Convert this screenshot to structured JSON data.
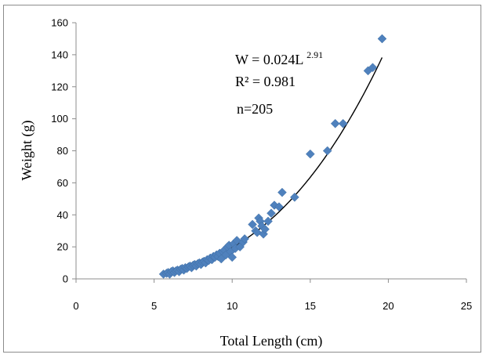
{
  "chart_data": {
    "type": "scatter",
    "title": "",
    "xlabel": "Total Length (cm)",
    "ylabel": "Weight (g)",
    "xlim": [
      0,
      25
    ],
    "ylim": [
      0,
      160
    ],
    "xticks": [
      "0",
      "5",
      "10",
      "15",
      "20",
      "25"
    ],
    "yticks": [
      "0",
      "20",
      "40",
      "60",
      "80",
      "100",
      "120",
      "140",
      "160"
    ],
    "grid": false,
    "legend": "none",
    "marker_color": "#4f81bd",
    "marker_shape": "diamond",
    "trendline": {
      "type": "power",
      "a": 0.024,
      "b": 2.91,
      "color": "#000000"
    },
    "annotations": {
      "equation_prefix": "W = 0.024L",
      "equation_exponent": "2.91",
      "r2": "R² = 0.981",
      "n": "n=205"
    },
    "points": [
      [
        5.6,
        3
      ],
      [
        5.8,
        3.5
      ],
      [
        5.9,
        4
      ],
      [
        6.0,
        3
      ],
      [
        6.1,
        4.5
      ],
      [
        6.2,
        5
      ],
      [
        6.3,
        4
      ],
      [
        6.4,
        5
      ],
      [
        6.5,
        5.5
      ],
      [
        6.6,
        4.5
      ],
      [
        6.7,
        6
      ],
      [
        6.8,
        6.5
      ],
      [
        6.9,
        5.5
      ],
      [
        7.0,
        7
      ],
      [
        7.1,
        6.5
      ],
      [
        7.2,
        7.5
      ],
      [
        7.3,
        8
      ],
      [
        7.4,
        7
      ],
      [
        7.5,
        8.5
      ],
      [
        7.6,
        9
      ],
      [
        7.7,
        8
      ],
      [
        7.8,
        9.5
      ],
      [
        7.9,
        10
      ],
      [
        8.0,
        9
      ],
      [
        8.1,
        10.5
      ],
      [
        8.2,
        11
      ],
      [
        8.3,
        10
      ],
      [
        8.4,
        12
      ],
      [
        8.5,
        11.5
      ],
      [
        8.6,
        13
      ],
      [
        8.7,
        12
      ],
      [
        8.8,
        14
      ],
      [
        8.9,
        13.5
      ],
      [
        9.0,
        15
      ],
      [
        9.1,
        14
      ],
      [
        9.2,
        16
      ],
      [
        9.3,
        12.5
      ],
      [
        9.4,
        17
      ],
      [
        9.5,
        18
      ],
      [
        9.6,
        15
      ],
      [
        9.7,
        20
      ],
      [
        9.8,
        21
      ],
      [
        9.9,
        17
      ],
      [
        10.0,
        13.5
      ],
      [
        10.1,
        22
      ],
      [
        10.2,
        19
      ],
      [
        10.3,
        24
      ],
      [
        10.5,
        20
      ],
      [
        10.7,
        23
      ],
      [
        10.8,
        25
      ],
      [
        11.3,
        34
      ],
      [
        11.5,
        30
      ],
      [
        11.6,
        29
      ],
      [
        11.7,
        38
      ],
      [
        11.8,
        36
      ],
      [
        11.9,
        33
      ],
      [
        12.0,
        28
      ],
      [
        12.1,
        31
      ],
      [
        12.3,
        36
      ],
      [
        12.5,
        41
      ],
      [
        12.7,
        46
      ],
      [
        13.0,
        45
      ],
      [
        13.2,
        54
      ],
      [
        14.0,
        51
      ],
      [
        15.0,
        78
      ],
      [
        16.1,
        80
      ],
      [
        16.6,
        97
      ],
      [
        17.1,
        97
      ],
      [
        18.7,
        130
      ],
      [
        19.0,
        132
      ],
      [
        19.6,
        150
      ]
    ]
  }
}
